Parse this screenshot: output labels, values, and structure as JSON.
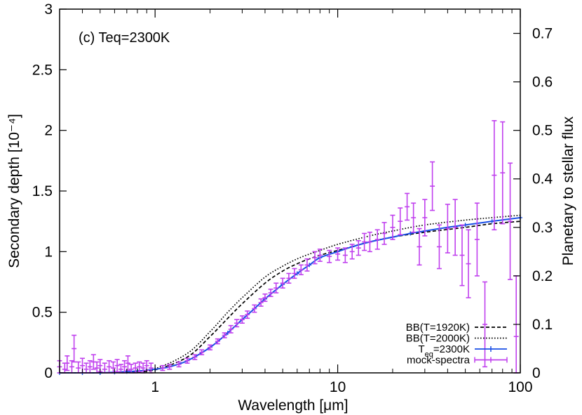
{
  "chart_data": {
    "type": "line",
    "annotation": "(c) Teq=2300K",
    "xlabel": "Wavelength [μm]",
    "xscale": "log",
    "xlim": [
      0.3,
      100
    ],
    "x_ticks": [
      {
        "value": 1,
        "label": "1"
      },
      {
        "value": 10,
        "label": "10"
      },
      {
        "value": 100,
        "label": "100"
      }
    ],
    "ylabel": "Secondary depth [10⁻⁴]",
    "ylim": [
      0,
      3
    ],
    "y_ticks": [
      {
        "value": 0,
        "label": "0"
      },
      {
        "value": 0.5,
        "label": "0.5"
      },
      {
        "value": 1,
        "label": "1"
      },
      {
        "value": 1.5,
        "label": "1.5"
      },
      {
        "value": 2,
        "label": "2"
      },
      {
        "value": 2.5,
        "label": "2.5"
      },
      {
        "value": 3,
        "label": "3"
      }
    ],
    "y2label": "Planetary to stellar flux",
    "y2lim": [
      0,
      0.75
    ],
    "y2_ticks": [
      {
        "value": 0,
        "label": "0"
      },
      {
        "value": 0.1,
        "label": "0.1"
      },
      {
        "value": 0.2,
        "label": "0.2"
      },
      {
        "value": 0.3,
        "label": "0.3"
      },
      {
        "value": 0.4,
        "label": "0.4"
      },
      {
        "value": 0.5,
        "label": "0.5"
      },
      {
        "value": 0.6,
        "label": "0.6"
      },
      {
        "value": 0.7,
        "label": "0.7"
      }
    ],
    "legend_position": "bottom-right",
    "series": [
      {
        "name": "BB(T=1920K)",
        "style": "dashed",
        "color": "#000000",
        "x": [
          0.7,
          1,
          1.5,
          2,
          2.5,
          3,
          4,
          5,
          6,
          7,
          8,
          10,
          15,
          20,
          30,
          50,
          70,
          100
        ],
        "y": [
          0.003,
          0.025,
          0.13,
          0.3,
          0.45,
          0.57,
          0.74,
          0.84,
          0.9,
          0.94,
          0.97,
          1.01,
          1.08,
          1.12,
          1.16,
          1.2,
          1.23,
          1.25
        ]
      },
      {
        "name": "BB(T=2000K)",
        "style": "dotted",
        "color": "#000000",
        "x": [
          0.7,
          1,
          1.5,
          2,
          2.5,
          3,
          4,
          5,
          6,
          7,
          8,
          10,
          15,
          20,
          30,
          50,
          70,
          100
        ],
        "y": [
          0.005,
          0.035,
          0.16,
          0.34,
          0.5,
          0.62,
          0.79,
          0.88,
          0.94,
          0.98,
          1.01,
          1.06,
          1.13,
          1.17,
          1.22,
          1.26,
          1.28,
          1.3
        ]
      },
      {
        "name": "Teq=2300K",
        "legend_label_parts": [
          "T",
          "eq",
          "=2300K"
        ],
        "style": "solid-with-points",
        "color": "#1a4fe6",
        "x": [
          0.3,
          0.4,
          0.5,
          0.6,
          0.7,
          0.8,
          1,
          1.2,
          1.5,
          2,
          2.5,
          3,
          3.5,
          4,
          5,
          6,
          7,
          8,
          10,
          12,
          15,
          20,
          25,
          30,
          40,
          50,
          70,
          100
        ],
        "y": [
          0.0,
          0.0,
          0.0,
          0.005,
          0.01,
          0.015,
          0.03,
          0.05,
          0.1,
          0.21,
          0.33,
          0.44,
          0.53,
          0.61,
          0.73,
          0.82,
          0.89,
          0.95,
          1.0,
          1.04,
          1.08,
          1.12,
          1.15,
          1.17,
          1.2,
          1.22,
          1.25,
          1.28
        ]
      },
      {
        "name": "mock-spectra",
        "style": "errorbar",
        "color": "#c040ee",
        "points": [
          {
            "x": 0.3,
            "y": 0.05,
            "err": 0.05
          },
          {
            "x": 0.32,
            "y": 0.03,
            "err": 0.05
          },
          {
            "x": 0.33,
            "y": 0.08,
            "err": 0.06
          },
          {
            "x": 0.35,
            "y": 0.05,
            "err": 0.05
          },
          {
            "x": 0.36,
            "y": 0.2,
            "err": 0.11
          },
          {
            "x": 0.38,
            "y": 0.04,
            "err": 0.05
          },
          {
            "x": 0.4,
            "y": 0.06,
            "err": 0.06
          },
          {
            "x": 0.42,
            "y": 0.03,
            "err": 0.05
          },
          {
            "x": 0.44,
            "y": 0.05,
            "err": 0.05
          },
          {
            "x": 0.46,
            "y": 0.09,
            "err": 0.06
          },
          {
            "x": 0.48,
            "y": 0.04,
            "err": 0.05
          },
          {
            "x": 0.5,
            "y": 0.06,
            "err": 0.05
          },
          {
            "x": 0.53,
            "y": 0.03,
            "err": 0.05
          },
          {
            "x": 0.56,
            "y": 0.05,
            "err": 0.05
          },
          {
            "x": 0.59,
            "y": 0.04,
            "err": 0.05
          },
          {
            "x": 0.62,
            "y": 0.06,
            "err": 0.05
          },
          {
            "x": 0.65,
            "y": 0.03,
            "err": 0.04
          },
          {
            "x": 0.68,
            "y": 0.05,
            "err": 0.05
          },
          {
            "x": 0.71,
            "y": 0.08,
            "err": 0.06
          },
          {
            "x": 0.74,
            "y": 0.03,
            "err": 0.04
          },
          {
            "x": 0.78,
            "y": 0.04,
            "err": 0.04
          },
          {
            "x": 0.82,
            "y": 0.05,
            "err": 0.04
          },
          {
            "x": 0.86,
            "y": 0.04,
            "err": 0.04
          },
          {
            "x": 0.9,
            "y": 0.06,
            "err": 0.04
          },
          {
            "x": 0.95,
            "y": 0.04,
            "err": 0.04
          },
          {
            "x": 1.1,
            "y": 0.04,
            "err": 0.02
          },
          {
            "x": 1.2,
            "y": 0.05,
            "err": 0.02
          },
          {
            "x": 1.35,
            "y": 0.07,
            "err": 0.02
          },
          {
            "x": 1.5,
            "y": 0.1,
            "err": 0.02
          },
          {
            "x": 1.65,
            "y": 0.13,
            "err": 0.02
          },
          {
            "x": 1.8,
            "y": 0.17,
            "err": 0.02
          },
          {
            "x": 2.0,
            "y": 0.21,
            "err": 0.02
          },
          {
            "x": 2.2,
            "y": 0.26,
            "err": 0.02
          },
          {
            "x": 2.4,
            "y": 0.31,
            "err": 0.02
          },
          {
            "x": 2.6,
            "y": 0.36,
            "err": 0.03
          },
          {
            "x": 2.8,
            "y": 0.41,
            "err": 0.03
          },
          {
            "x": 3.0,
            "y": 0.44,
            "err": 0.03
          },
          {
            "x": 3.2,
            "y": 0.48,
            "err": 0.03
          },
          {
            "x": 3.5,
            "y": 0.53,
            "err": 0.03
          },
          {
            "x": 3.8,
            "y": 0.58,
            "err": 0.03
          },
          {
            "x": 4.0,
            "y": 0.62,
            "err": 0.03
          },
          {
            "x": 4.3,
            "y": 0.66,
            "err": 0.03
          },
          {
            "x": 4.6,
            "y": 0.7,
            "err": 0.04
          },
          {
            "x": 5.0,
            "y": 0.74,
            "err": 0.04
          },
          {
            "x": 5.4,
            "y": 0.78,
            "err": 0.04
          },
          {
            "x": 5.8,
            "y": 0.82,
            "err": 0.04
          },
          {
            "x": 6.3,
            "y": 0.85,
            "err": 0.04
          },
          {
            "x": 6.8,
            "y": 0.89,
            "err": 0.05
          },
          {
            "x": 7.5,
            "y": 0.95,
            "err": 0.05
          },
          {
            "x": 8.0,
            "y": 0.97,
            "err": 0.05
          },
          {
            "x": 9.0,
            "y": 0.96,
            "err": 0.05
          },
          {
            "x": 10.0,
            "y": 0.98,
            "err": 0.05
          },
          {
            "x": 11.0,
            "y": 0.97,
            "err": 0.06
          },
          {
            "x": 12.0,
            "y": 1.0,
            "err": 0.06
          },
          {
            "x": 13.0,
            "y": 1.03,
            "err": 0.06
          },
          {
            "x": 14.0,
            "y": 1.08,
            "err": 0.07
          },
          {
            "x": 15.0,
            "y": 1.08,
            "err": 0.08
          },
          {
            "x": 16.5,
            "y": 1.1,
            "err": 0.08
          },
          {
            "x": 18.0,
            "y": 1.15,
            "err": 0.09
          },
          {
            "x": 20.0,
            "y": 1.2,
            "err": 0.1
          },
          {
            "x": 22.0,
            "y": 1.25,
            "err": 0.11
          },
          {
            "x": 24.0,
            "y": 1.37,
            "err": 0.11
          },
          {
            "x": 26.0,
            "y": 1.28,
            "err": 0.12
          },
          {
            "x": 28.0,
            "y": 1.04,
            "err": 0.15
          },
          {
            "x": 30.0,
            "y": 1.28,
            "err": 0.15
          },
          {
            "x": 33.0,
            "y": 1.54,
            "err": 0.2
          },
          {
            "x": 36.0,
            "y": 1.04,
            "err": 0.18
          },
          {
            "x": 40.0,
            "y": 1.19,
            "err": 0.2
          },
          {
            "x": 44.0,
            "y": 1.2,
            "err": 0.23
          },
          {
            "x": 48.0,
            "y": 0.97,
            "err": 0.25
          },
          {
            "x": 52.0,
            "y": 0.9,
            "err": 0.28
          },
          {
            "x": 58.0,
            "y": 1.1,
            "err": 0.3
          },
          {
            "x": 64.0,
            "y": 0.4,
            "err": 0.35
          },
          {
            "x": 72.0,
            "y": 1.63,
            "err": 0.45
          },
          {
            "x": 80.0,
            "y": 1.65,
            "err": 0.42
          },
          {
            "x": 88.0,
            "y": 1.25,
            "err": 0.48
          },
          {
            "x": 95.0,
            "y": 0.3,
            "err": 0.5
          }
        ]
      }
    ]
  }
}
